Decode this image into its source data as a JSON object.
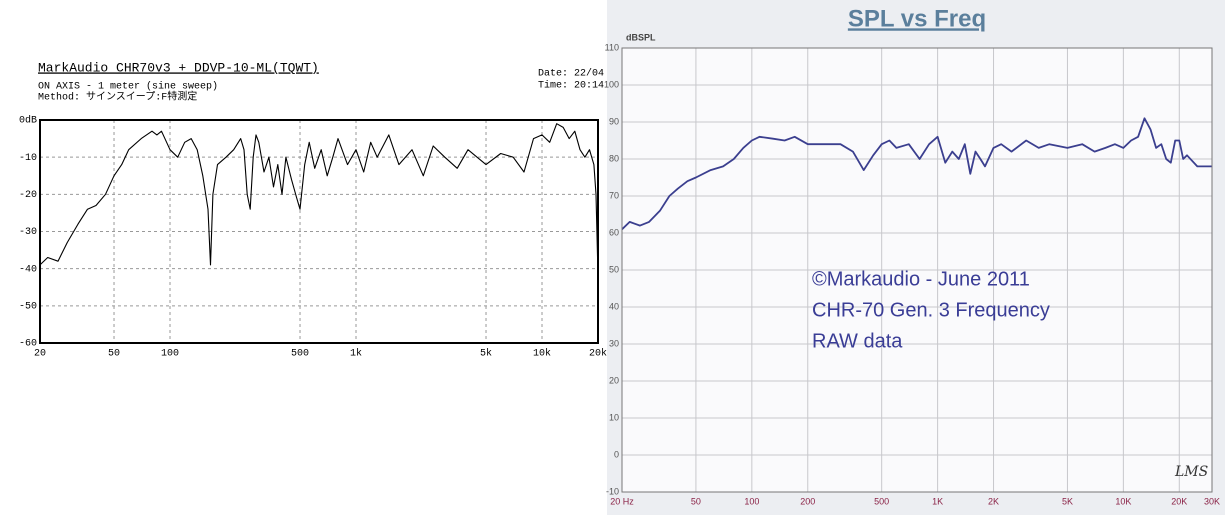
{
  "chart_data": [
    {
      "type": "line",
      "title": "MarkAudio CHR70v3 + DDVP-10-ML(TQWT)",
      "subtitle": [
        "ON AXIS - 1 meter (sine sweep)",
        "Method: サインスイープ:F特測定"
      ],
      "date_label": "Date: 22/04",
      "time_label": "Time: 20:14",
      "log_x": true,
      "grid": true,
      "color": "#000000",
      "xlim": [
        20,
        20000
      ],
      "xticks": [
        20,
        50,
        100,
        500,
        {
          "value": 1000,
          "label": "1k"
        },
        {
          "value": 5000,
          "label": "5k"
        },
        {
          "value": 10000,
          "label": "10k"
        },
        {
          "value": 20000,
          "label": "20k"
        }
      ],
      "ylim": [
        -60,
        0
      ],
      "yticks": [
        {
          "value": 0,
          "label": "0dB"
        },
        -10,
        -20,
        -30,
        -40,
        -50,
        -60
      ],
      "x": [
        20,
        22,
        25,
        28,
        32,
        36,
        40,
        45,
        50,
        55,
        60,
        70,
        80,
        85,
        90,
        100,
        110,
        120,
        130,
        140,
        150,
        160,
        165,
        170,
        180,
        200,
        220,
        240,
        250,
        260,
        270,
        280,
        290,
        300,
        320,
        340,
        360,
        380,
        400,
        420,
        450,
        480,
        500,
        530,
        560,
        600,
        650,
        700,
        750,
        800,
        900,
        1000,
        1100,
        1200,
        1300,
        1500,
        1700,
        2000,
        2300,
        2600,
        3000,
        3500,
        4000,
        5000,
        6000,
        7000,
        8000,
        9000,
        10000,
        11000,
        12000,
        13000,
        14000,
        15000,
        16000,
        17000,
        18000,
        19000,
        19500,
        20000
      ],
      "values": [
        -39,
        -37,
        -38,
        -33,
        -28,
        -24,
        -23,
        -20,
        -15,
        -12,
        -8,
        -5,
        -3,
        -4,
        -3,
        -8,
        -10,
        -6,
        -5,
        -8,
        -15,
        -24,
        -39,
        -20,
        -12,
        -10,
        -8,
        -5,
        -8,
        -20,
        -24,
        -10,
        -4,
        -6,
        -14,
        -10,
        -18,
        -12,
        -20,
        -10,
        -16,
        -21,
        -24,
        -12,
        -6,
        -13,
        -8,
        -15,
        -10,
        -5,
        -12,
        -8,
        -14,
        -6,
        -10,
        -4,
        -12,
        -8,
        -15,
        -7,
        -10,
        -13,
        -8,
        -12,
        -9,
        -10,
        -14,
        -5,
        -4,
        -6,
        -1,
        -2,
        -5,
        -3,
        -8,
        -10,
        -8,
        -12,
        -20,
        -42
      ]
    },
    {
      "type": "line",
      "title": "SPL vs Freq",
      "y_label": "dBSPL",
      "annotations": [
        "©Markaudio - June 2011",
        "CHR-70 Gen. 3 Frequency",
        "RAW data"
      ],
      "logo": "LMS",
      "log_x": true,
      "grid": true,
      "color": "#3b3f8f",
      "xlim": [
        20,
        30000
      ],
      "xticks": [
        {
          "value": 20,
          "label": "20 Hz"
        },
        50,
        100,
        200,
        500,
        {
          "value": 1000,
          "label": "1K"
        },
        {
          "value": 2000,
          "label": "2K"
        },
        {
          "value": 5000,
          "label": "5K"
        },
        {
          "value": 10000,
          "label": "10K"
        },
        {
          "value": 20000,
          "label": "20K"
        },
        {
          "value": 30000,
          "label": "30K"
        }
      ],
      "ylim": [
        -10,
        110
      ],
      "yticks": [
        -10,
        0,
        10,
        20,
        30,
        40,
        50,
        60,
        70,
        80,
        90,
        100,
        110
      ],
      "x": [
        20,
        22,
        25,
        28,
        32,
        36,
        40,
        45,
        50,
        60,
        70,
        80,
        90,
        100,
        110,
        130,
        150,
        170,
        200,
        250,
        300,
        350,
        400,
        450,
        500,
        550,
        600,
        700,
        800,
        900,
        1000,
        1100,
        1200,
        1300,
        1400,
        1500,
        1600,
        1700,
        1800,
        2000,
        2200,
        2500,
        3000,
        3500,
        4000,
        5000,
        6000,
        7000,
        8000,
        9000,
        10000,
        11000,
        12000,
        13000,
        14000,
        15000,
        16000,
        17000,
        18000,
        19000,
        20000,
        21000,
        22000,
        25000,
        30000
      ],
      "values": [
        61,
        63,
        62,
        63,
        66,
        70,
        72,
        74,
        75,
        77,
        78,
        80,
        83,
        85,
        86,
        85.5,
        85,
        86,
        84,
        84,
        84,
        82,
        77,
        81,
        84,
        85,
        83,
        84,
        80,
        84,
        86,
        79,
        82,
        80,
        84,
        76,
        82,
        80,
        78,
        83,
        84,
        82,
        85,
        83,
        84,
        83,
        84,
        82,
        83,
        84,
        83,
        85,
        86,
        91,
        88,
        83,
        84,
        80,
        79,
        85,
        85,
        80,
        81,
        78,
        78
      ]
    }
  ]
}
